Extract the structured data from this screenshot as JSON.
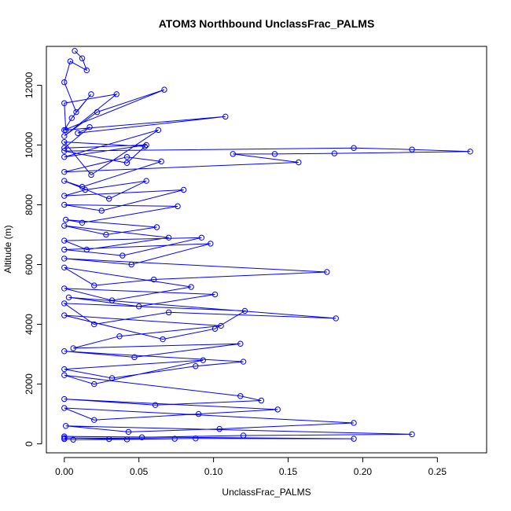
{
  "chart_data": {
    "type": "line",
    "title": "ATOM3 Northbound UnclassFrac_PALMS",
    "xlabel": "UnclassFrac_PALMS",
    "ylabel": "Altitude (m)",
    "xlim": [
      -0.012,
      0.283
    ],
    "ylim": [
      -300,
      13300
    ],
    "x_ticks": [
      "0.00",
      "0.05",
      "0.10",
      "0.15",
      "0.20",
      "0.25"
    ],
    "x_tick_values": [
      0,
      0.05,
      0.1,
      0.15,
      0.2,
      0.25
    ],
    "y_ticks": [
      "0",
      "2000",
      "4000",
      "6000",
      "8000",
      "10000",
      "12000"
    ],
    "y_tick_values": [
      0,
      2000,
      4000,
      6000,
      8000,
      10000,
      12000
    ],
    "series_color": "#0000ff",
    "marker": "open-circle",
    "grid": false,
    "series": [
      {
        "x": [
          0.007,
          0.012,
          0.015,
          0.004,
          0.0,
          0.008,
          0.018,
          0.005,
          0.0,
          0.067,
          0.022,
          0.0,
          0.035,
          0.0,
          0.001,
          0.108,
          0.009,
          0.017,
          0.0,
          0.055,
          0.0,
          0.063,
          0.018,
          0.0,
          0.054,
          0.042,
          0.0,
          0.194,
          0.233,
          0.272,
          0.181,
          0.141,
          0.113,
          0.157,
          0.0,
          0.042,
          0.065,
          0.012,
          0.0,
          0.03,
          0.055,
          0.014,
          0.0,
          0.08,
          0.025,
          0.0,
          0.076,
          0.012,
          0.001,
          0.062,
          0.028,
          0.0,
          0.07,
          0.015,
          0.0,
          0.092,
          0.039,
          0.0,
          0.098,
          0.045,
          0.0,
          0.176,
          0.06,
          0.02,
          0.0,
          0.085,
          0.032,
          0.0,
          0.101,
          0.05,
          0.003,
          0.182,
          0.07,
          0.02,
          0.0,
          0.121,
          0.101,
          0.066,
          0.0,
          0.105,
          0.037,
          0.006,
          0.118,
          0.047,
          0.0,
          0.12,
          0.088,
          0.032,
          0.0,
          0.093,
          0.02,
          0.0,
          0.118,
          0.132,
          0.061,
          0.0,
          0.143,
          0.09,
          0.02,
          0.0,
          0.194,
          0.104,
          0.043,
          0.001,
          0.233,
          0.12,
          0.052,
          0.0,
          0.194,
          0.088,
          0.03,
          0.0,
          0.074,
          0.042,
          0.006,
          0.0
        ],
        "y": [
          13150,
          12900,
          12500,
          12800,
          12100,
          11100,
          11700,
          10900,
          10500,
          11850,
          11100,
          10300,
          11700,
          11400,
          10500,
          10950,
          10400,
          10600,
          9900,
          10000,
          9600,
          10500,
          9000,
          10100,
          9950,
          9400,
          9800,
          9900,
          9850,
          9780,
          9720,
          9700,
          9700,
          9420,
          9100,
          9600,
          9450,
          8600,
          8800,
          8200,
          8800,
          8500,
          8300,
          8500,
          7800,
          8000,
          7950,
          7400,
          7500,
          7250,
          7000,
          7300,
          6900,
          6500,
          6800,
          6900,
          6300,
          6500,
          6700,
          6000,
          6200,
          5750,
          5500,
          5300,
          5900,
          5250,
          4800,
          5200,
          5000,
          4600,
          4900,
          4200,
          4400,
          4000,
          4700,
          4450,
          3850,
          3500,
          4300,
          3950,
          3600,
          3200,
          3350,
          2900,
          3100,
          2750,
          2600,
          2200,
          2500,
          2800,
          2000,
          2300,
          1600,
          1450,
          1300,
          1500,
          1150,
          1000,
          800,
          1200,
          700,
          500,
          400,
          600,
          320,
          280,
          220,
          250,
          170,
          180,
          160,
          200,
          170,
          150,
          140,
          160
        ]
      }
    ]
  }
}
